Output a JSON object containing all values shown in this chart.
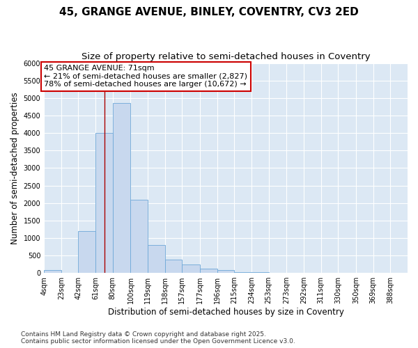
{
  "title_line1": "45, GRANGE AVENUE, BINLEY, COVENTRY, CV3 2ED",
  "title_line2": "Size of property relative to semi-detached houses in Coventry",
  "xlabel": "Distribution of semi-detached houses by size in Coventry",
  "ylabel": "Number of semi-detached properties",
  "bar_color": "#c8d8ee",
  "bar_edge_color": "#6ea8d8",
  "background_color": "#dce8f4",
  "grid_color": "#ffffff",
  "annotation_box_color": "#cc0000",
  "property_line_color": "#aa0000",
  "property_value": 71,
  "property_label": "45 GRANGE AVENUE: 71sqm",
  "pct_smaller": 21,
  "pct_larger": 78,
  "n_smaller": 2827,
  "n_larger": 10672,
  "bin_edges": [
    4,
    23,
    42,
    61,
    80,
    100,
    119,
    138,
    157,
    177,
    196,
    215,
    234,
    253,
    273,
    292,
    311,
    330,
    350,
    369,
    388
  ],
  "bin_widths": [
    19,
    19,
    19,
    19,
    20,
    19,
    19,
    19,
    20,
    19,
    19,
    19,
    19,
    20,
    19,
    19,
    19,
    20,
    19,
    19
  ],
  "tick_labels": [
    "4sqm",
    "23sqm",
    "42sqm",
    "61sqm",
    "80sqm",
    "100sqm",
    "119sqm",
    "138sqm",
    "157sqm",
    "177sqm",
    "196sqm",
    "215sqm",
    "234sqm",
    "253sqm",
    "273sqm",
    "292sqm",
    "311sqm",
    "330sqm",
    "350sqm",
    "369sqm",
    "388sqm"
  ],
  "values": [
    75,
    0,
    1200,
    4000,
    4850,
    2100,
    800,
    380,
    240,
    130,
    75,
    30,
    20,
    5,
    2,
    1,
    0,
    0,
    0,
    0
  ],
  "ylim": [
    0,
    6000
  ],
  "yticks": [
    0,
    500,
    1000,
    1500,
    2000,
    2500,
    3000,
    3500,
    4000,
    4500,
    5000,
    5500,
    6000
  ],
  "footnote": "Contains HM Land Registry data © Crown copyright and database right 2025.\nContains public sector information licensed under the Open Government Licence v3.0.",
  "title_fontsize": 11,
  "subtitle_fontsize": 9.5,
  "axis_label_fontsize": 8.5,
  "tick_fontsize": 7,
  "annotation_fontsize": 8,
  "footnote_fontsize": 6.5,
  "fig_bg_color": "#ffffff"
}
